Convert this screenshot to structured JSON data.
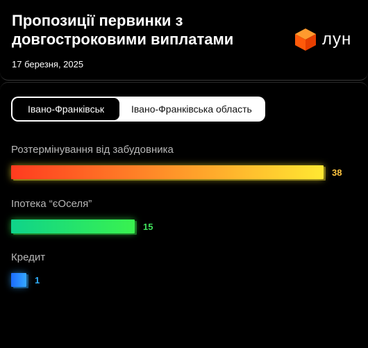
{
  "header": {
    "title": "Пропозиції первинки з довгостроковими виплатами",
    "date": "17 березня, 2025",
    "logo_text": "лун",
    "logo_icon": "cube-icon"
  },
  "tabs": [
    {
      "label": "Івано-Франківськ",
      "active": true
    },
    {
      "label": "Івано-Франківська область",
      "active": false
    }
  ],
  "chart_data": {
    "type": "bar",
    "orientation": "horizontal",
    "categories": [
      "Розтермінування від забудовника",
      "Іпотека “єОселя”",
      "Кредит"
    ],
    "values": [
      38,
      15,
      1
    ],
    "colors": [
      [
        "#ff3b1f",
        "#ffe832"
      ],
      [
        "#0fd38a",
        "#39f24f"
      ],
      [
        "#1b6cff",
        "#35a7ff"
      ]
    ],
    "value_colors": [
      "#ffc640",
      "#3fe05a",
      "#2fb0ff"
    ]
  }
}
